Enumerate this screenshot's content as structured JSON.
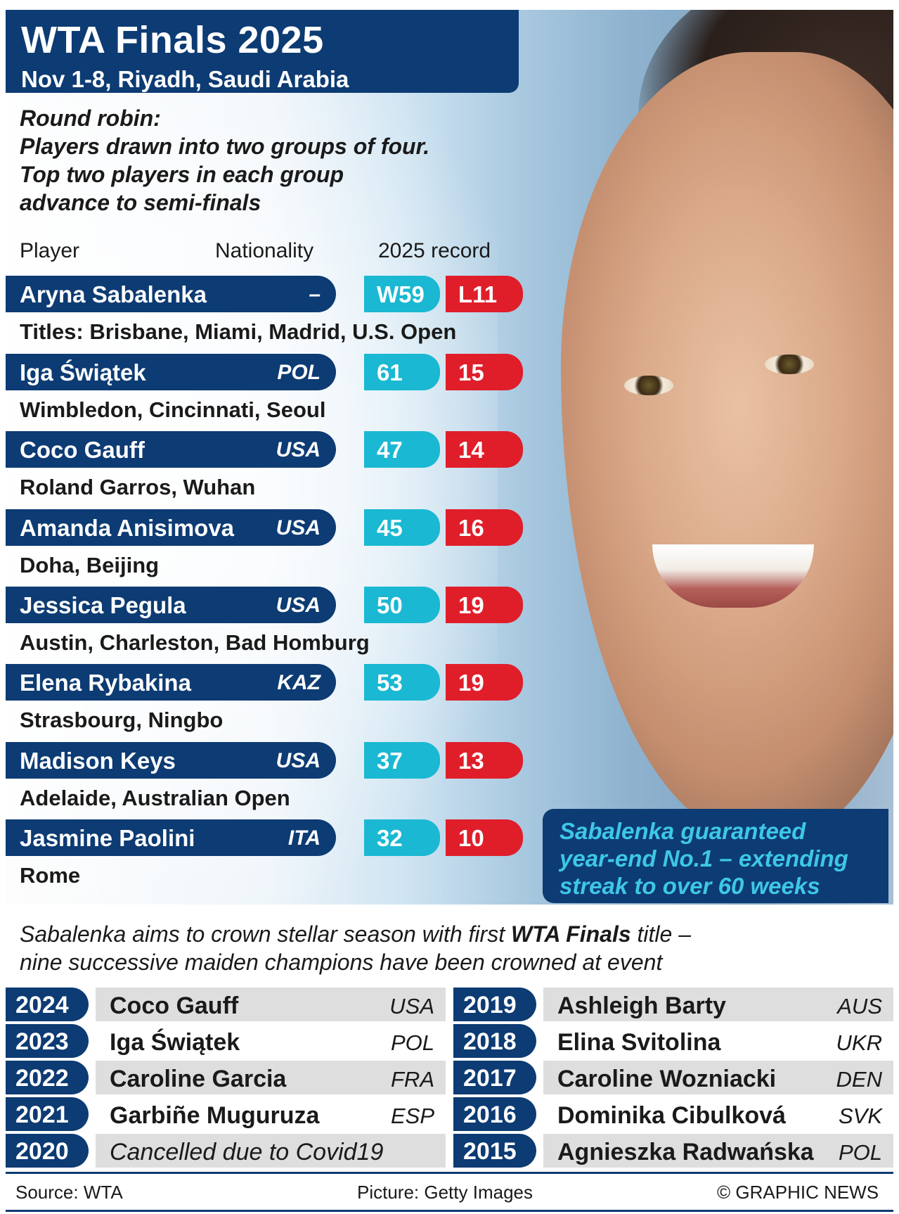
{
  "header": {
    "title": "WTA Finals 2025",
    "subtitle": "Nov 1-8, Riyadh, Saudi Arabia"
  },
  "format": {
    "line1": "Round robin:",
    "line2": "Players drawn into two groups of four.",
    "line3": "Top two players in each group",
    "line4": "advance to semi-finals"
  },
  "columns": {
    "player": "Player",
    "nationality": "Nationality",
    "record": "2025 record"
  },
  "players": [
    {
      "name": "Aryna Sabalenka",
      "nat": "–",
      "wins": "W59",
      "losses": "L11",
      "titles": "Titles: Brisbane, Miami, Madrid, U.S. Open"
    },
    {
      "name": "Iga Świątek",
      "nat": "POL",
      "wins": "61",
      "losses": "15",
      "titles": "Wimbledon, Cincinnati, Seoul"
    },
    {
      "name": "Coco Gauff",
      "nat": "USA",
      "wins": "47",
      "losses": "14",
      "titles": "Roland Garros, Wuhan"
    },
    {
      "name": "Amanda Anisimova",
      "nat": "USA",
      "wins": "45",
      "losses": "16",
      "titles": "Doha, Beijing"
    },
    {
      "name": "Jessica Pegula",
      "nat": "USA",
      "wins": "50",
      "losses": "19",
      "titles": "Austin, Charleston, Bad Homburg"
    },
    {
      "name": "Elena Rybakina",
      "nat": "KAZ",
      "wins": "53",
      "losses": "19",
      "titles": "Strasbourg, Ningbo"
    },
    {
      "name": "Madison Keys",
      "nat": "USA",
      "wins": "37",
      "losses": "13",
      "titles": "Adelaide, Australian Open"
    },
    {
      "name": "Jasmine Paolini",
      "nat": "ITA",
      "wins": "32",
      "losses": "10",
      "titles": "Rome"
    }
  ],
  "callout": {
    "line1": "Sabalenka guaranteed",
    "line2": "year-end No.1 – extending",
    "line3": "streak to over 60 weeks"
  },
  "tagline": {
    "line1_pre": "Sabalenka aims to crown stellar season with first ",
    "line1_bold": "WTA Finals",
    "line1_post": " title –",
    "line2": "nine successive maiden champions have been crowned at event"
  },
  "champions_left": [
    {
      "year": "2024",
      "name": "Coco Gauff",
      "nat": "USA"
    },
    {
      "year": "2023",
      "name": "Iga Świątek",
      "nat": "POL"
    },
    {
      "year": "2022",
      "name": "Caroline Garcia",
      "nat": "FRA"
    },
    {
      "year": "2021",
      "name": "Garbiñe Muguruza",
      "nat": "ESP"
    },
    {
      "year": "2020",
      "name": "Cancelled due to Covid19",
      "nat": ""
    }
  ],
  "champions_right": [
    {
      "year": "2019",
      "name": "Ashleigh Barty",
      "nat": "AUS"
    },
    {
      "year": "2018",
      "name": "Elina Svitolina",
      "nat": "UKR"
    },
    {
      "year": "2017",
      "name": "Caroline Wozniacki",
      "nat": "DEN"
    },
    {
      "year": "2016",
      "name": "Dominika Cibulková",
      "nat": "SVK"
    },
    {
      "year": "2015",
      "name": "Agnieszka Radwańska",
      "nat": "POL"
    }
  ],
  "footer": {
    "source": "Source: WTA",
    "picture": "Picture: Getty Images",
    "credit": "© GRAPHIC NEWS"
  },
  "colors": {
    "navy": "#0d3b73",
    "wins": "#1ab8d2",
    "losses": "#e01e2a",
    "callout_text": "#3ec7e6"
  }
}
